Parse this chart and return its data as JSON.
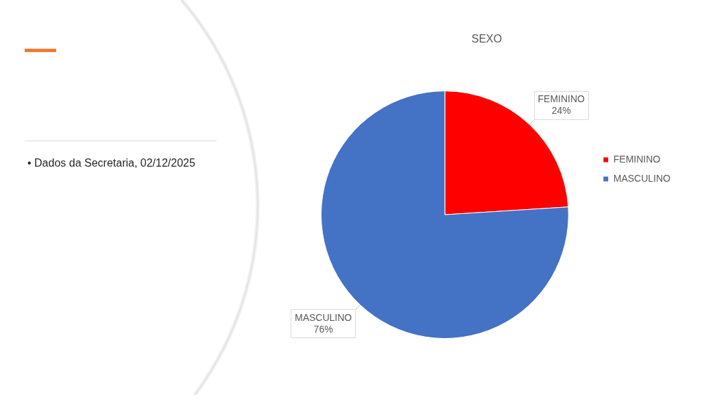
{
  "chart_data": {
    "type": "pie",
    "title": "SEXO",
    "categories": [
      "FEMININO",
      "MASCULINO"
    ],
    "values": [
      24,
      76
    ],
    "colors": [
      "#ff0000",
      "#4472c4"
    ],
    "value_labels": [
      "24%",
      "76%"
    ],
    "legend": "right",
    "annotations": [
      "• Dados da Secretaria, 02/12/2025"
    ]
  }
}
